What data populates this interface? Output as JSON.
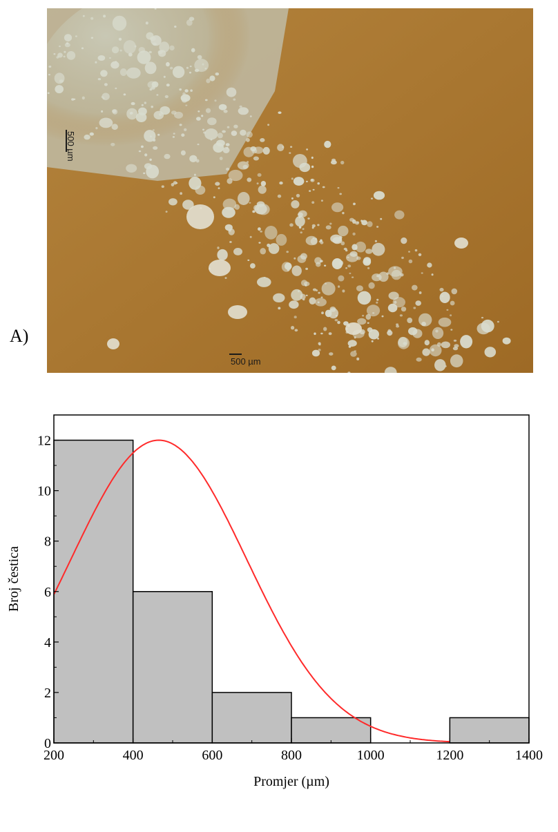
{
  "panel_a": {
    "label": "A)",
    "scale_bar_vertical": "500 µm",
    "scale_bar_horizontal": "500 µm",
    "colors": {
      "background": "#b07a32",
      "particles": "#d9dccf"
    }
  },
  "chart_data": {
    "type": "bar",
    "chart_type_detail": "histogram with fitted normal curve",
    "bins": [
      {
        "x0": 200,
        "x1": 400,
        "count": 12
      },
      {
        "x0": 400,
        "x1": 600,
        "count": 6
      },
      {
        "x0": 600,
        "x1": 800,
        "count": 2
      },
      {
        "x0": 800,
        "x1": 1000,
        "count": 1
      },
      {
        "x0": 1000,
        "x1": 1200,
        "count": 0
      },
      {
        "x0": 1200,
        "x1": 1400,
        "count": 1
      }
    ],
    "fit_curve": {
      "type": "normal",
      "mean": 465,
      "sd": 222,
      "peak": 12,
      "color": "#ff2a2a"
    },
    "xlabel": "Promjer (µm)",
    "ylabel": "Broj čestica",
    "xlim": [
      200,
      1400
    ],
    "ylim": [
      0,
      13
    ],
    "xticks": [
      200,
      400,
      600,
      800,
      1000,
      1200,
      1400
    ],
    "yticks": [
      0,
      2,
      4,
      6,
      8,
      10,
      12
    ],
    "bar_color": "#c0c0c0",
    "grid": false
  }
}
